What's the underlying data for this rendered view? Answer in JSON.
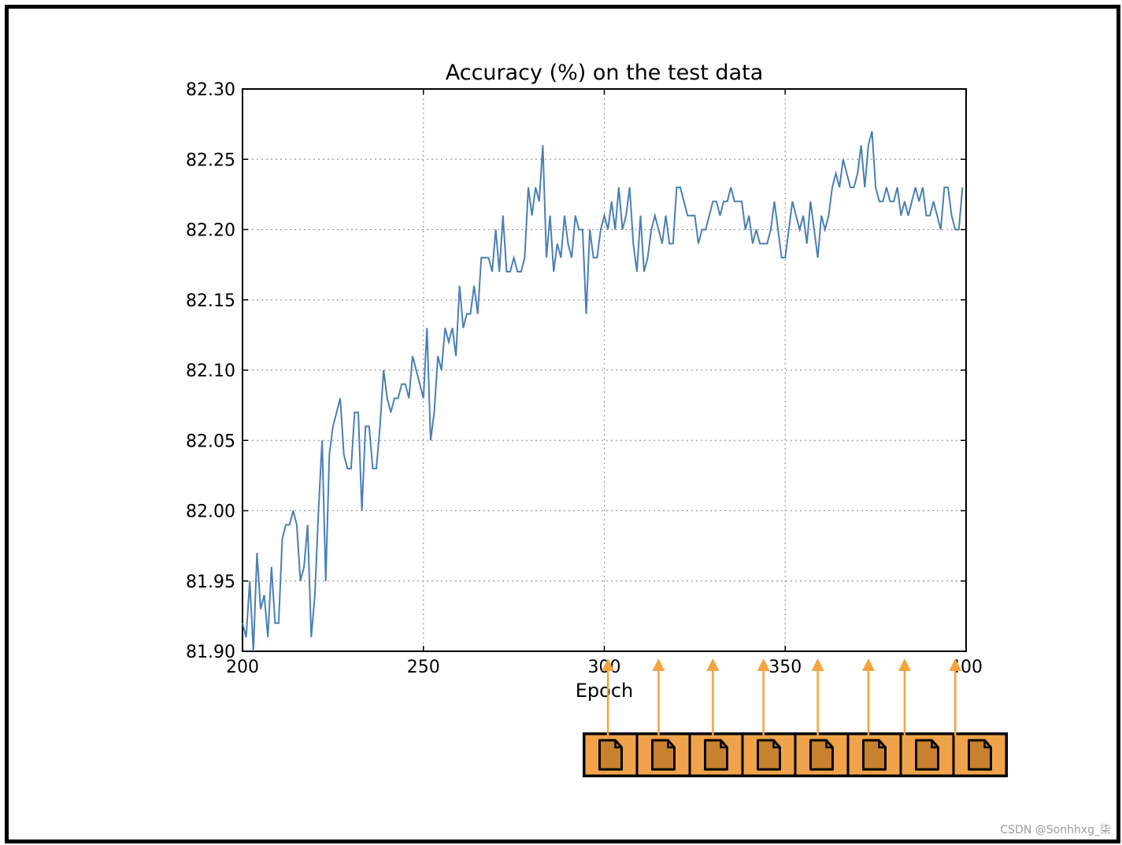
{
  "chart_data": {
    "type": "line",
    "title": "Accuracy (%) on the test data",
    "xlabel": "Epoch",
    "ylabel": "",
    "xlim": [
      200,
      400
    ],
    "ylim": [
      81.9,
      82.3
    ],
    "x_ticks": [
      "200",
      "250",
      "300",
      "350",
      "400"
    ],
    "y_ticks": [
      "81.90",
      "81.95",
      "82.00",
      "82.05",
      "82.10",
      "82.15",
      "82.20",
      "82.25",
      "82.30"
    ],
    "grid": true,
    "line_color": "#4a7fb5",
    "x_start": 200,
    "y": [
      81.92,
      81.91,
      81.95,
      81.9,
      81.97,
      81.93,
      81.94,
      81.91,
      81.96,
      81.92,
      81.92,
      81.98,
      81.99,
      81.99,
      82.0,
      81.99,
      81.95,
      81.96,
      81.99,
      81.91,
      81.94,
      82.0,
      82.05,
      81.95,
      82.04,
      82.06,
      82.07,
      82.08,
      82.04,
      82.03,
      82.03,
      82.07,
      82.07,
      82.0,
      82.06,
      82.06,
      82.03,
      82.03,
      82.06,
      82.1,
      82.08,
      82.07,
      82.08,
      82.08,
      82.09,
      82.09,
      82.08,
      82.11,
      82.1,
      82.09,
      82.08,
      82.13,
      82.05,
      82.07,
      82.11,
      82.1,
      82.13,
      82.12,
      82.13,
      82.11,
      82.16,
      82.13,
      82.14,
      82.14,
      82.16,
      82.14,
      82.18,
      82.18,
      82.18,
      82.17,
      82.2,
      82.17,
      82.21,
      82.17,
      82.17,
      82.18,
      82.17,
      82.17,
      82.18,
      82.23,
      82.21,
      82.23,
      82.22,
      82.26,
      82.18,
      82.21,
      82.17,
      82.19,
      82.18,
      82.21,
      82.19,
      82.18,
      82.21,
      82.2,
      82.2,
      82.14,
      82.2,
      82.18,
      82.18,
      82.2,
      82.21,
      82.2,
      82.22,
      82.2,
      82.23,
      82.2,
      82.21,
      82.23,
      82.19,
      82.17,
      82.21,
      82.17,
      82.18,
      82.2,
      82.21,
      82.2,
      82.19,
      82.21,
      82.19,
      82.19,
      82.23,
      82.23,
      82.22,
      82.21,
      82.21,
      82.21,
      82.19,
      82.2,
      82.2,
      82.21,
      82.22,
      82.22,
      82.21,
      82.22,
      82.22,
      82.23,
      82.22,
      82.22,
      82.22,
      82.2,
      82.21,
      82.19,
      82.2,
      82.19,
      82.19,
      82.19,
      82.2,
      82.22,
      82.2,
      82.18,
      82.18,
      82.2,
      82.22,
      82.21,
      82.2,
      82.21,
      82.19,
      82.22,
      82.2,
      82.18,
      82.21,
      82.2,
      82.21,
      82.23,
      82.24,
      82.23,
      82.25,
      82.24,
      82.23,
      82.23,
      82.24,
      82.26,
      82.23,
      82.26,
      82.27,
      82.23,
      82.22,
      82.22,
      82.23,
      82.22,
      82.22,
      82.23,
      82.21,
      82.22,
      82.21,
      82.22,
      82.23,
      82.22,
      82.23,
      82.21,
      82.21,
      82.22,
      82.21,
      82.2,
      82.23,
      82.23,
      82.21,
      82.2,
      82.2,
      82.23
    ]
  },
  "overlay": {
    "block_count": 8,
    "arrow_x_values": [
      301,
      315,
      330,
      344,
      359,
      373,
      383,
      397
    ],
    "block_fill": "#f0a34a",
    "block_border": "#000000",
    "arrow_color": "#f5a33e",
    "icon": "document-icon"
  },
  "watermark": "CSDN @Sonhhxg_柒"
}
